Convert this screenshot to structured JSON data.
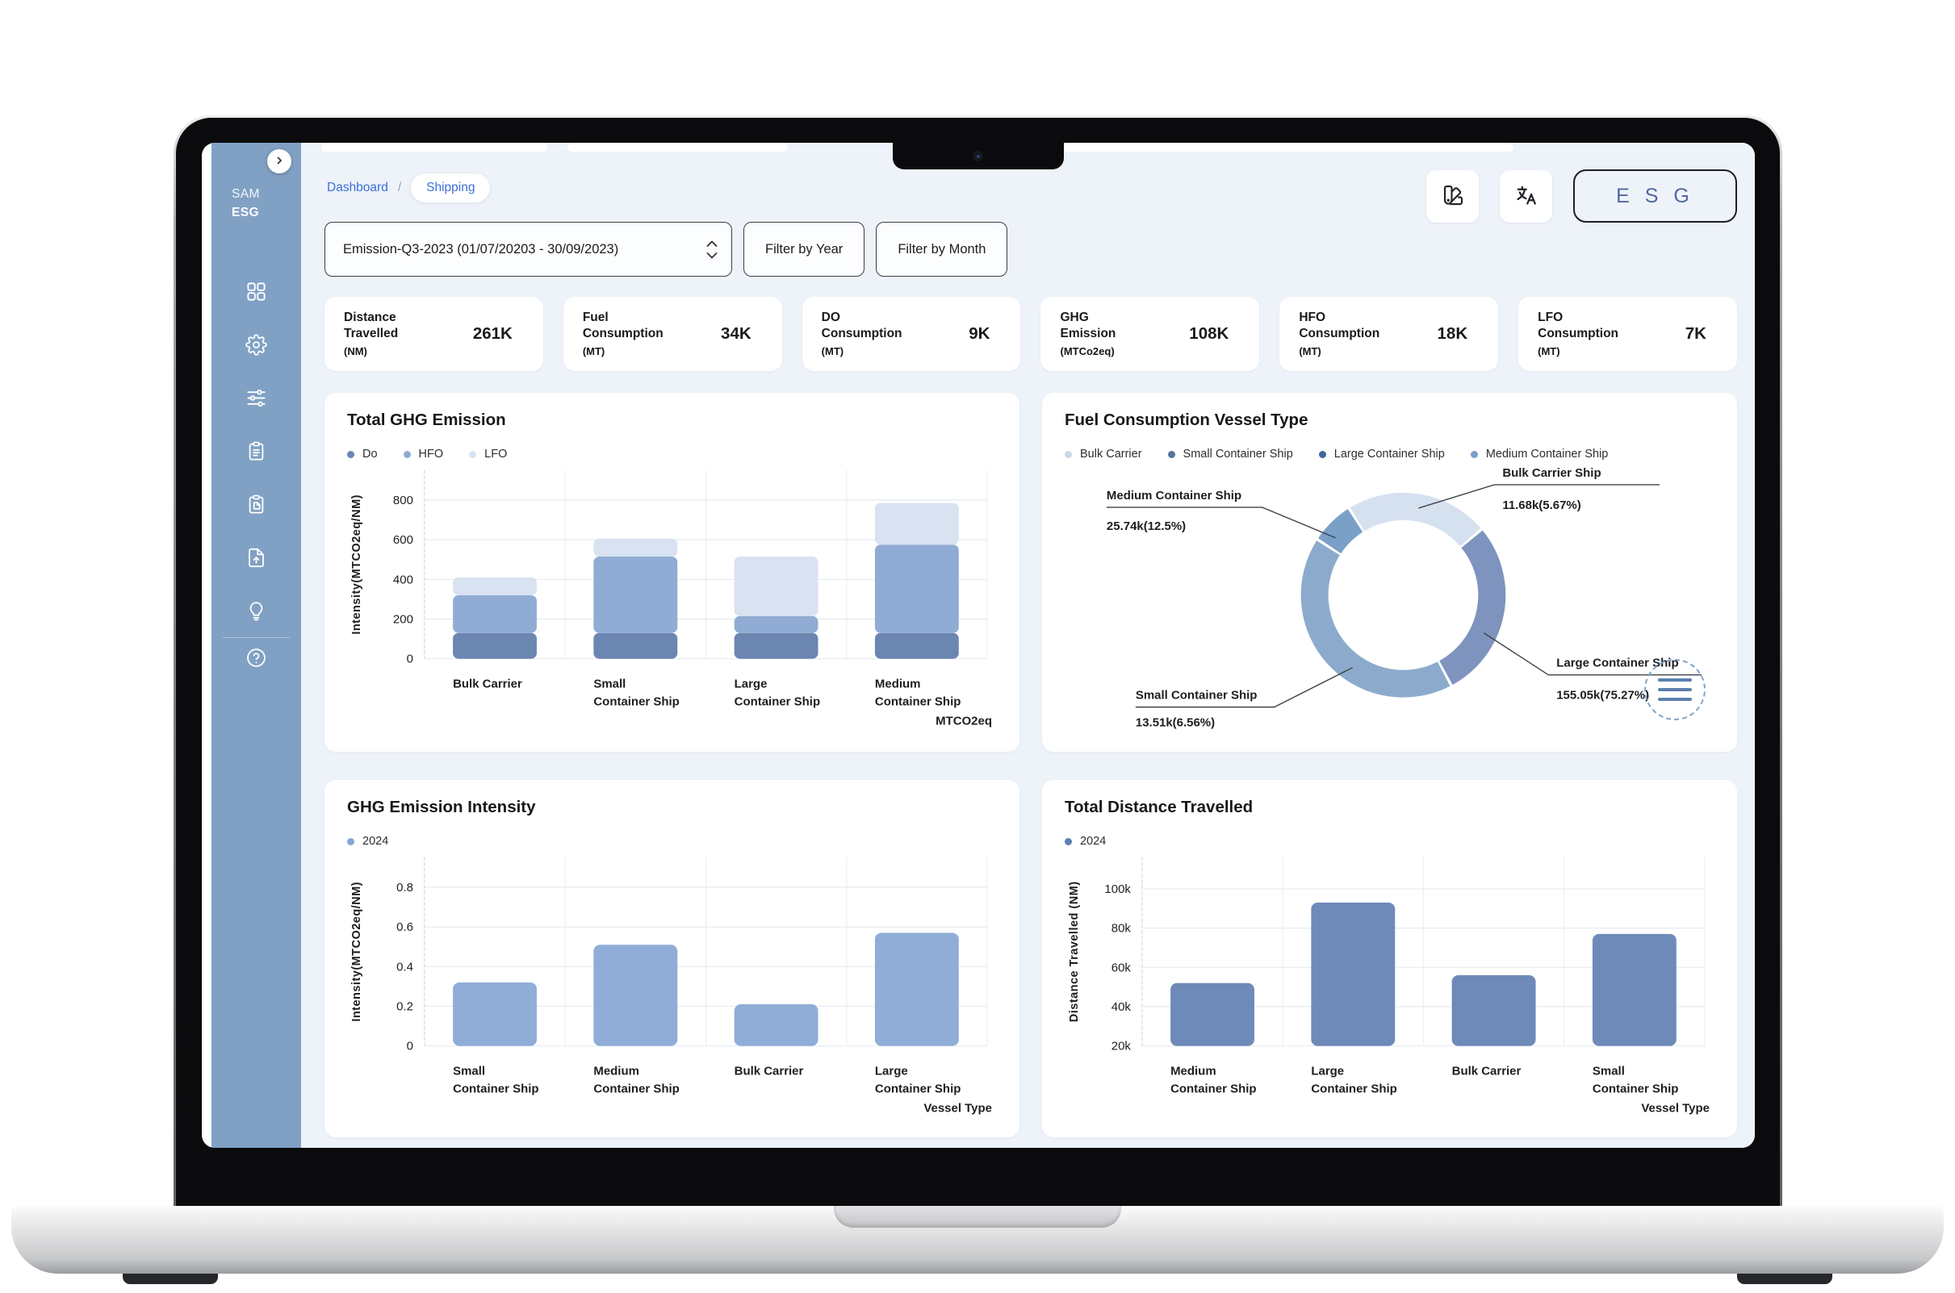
{
  "sidebar": {
    "brand_line1": "SAM",
    "brand_line2": "ESG",
    "collapse_icon": "chevron-right",
    "icons": [
      "dashboard-grid",
      "settings-gear",
      "filter-sliders",
      "report-clipboard",
      "copy-clipboard",
      "file-upload",
      "idea-bulb",
      "help-circle"
    ]
  },
  "header": {
    "breadcrumb": {
      "home": "Dashboard",
      "separator": "/",
      "current": "Shipping"
    },
    "actions": {
      "theme_icon": "swatchbook-icon",
      "translate_icon": "translate-icon",
      "esg_button": "E S G"
    }
  },
  "filters": {
    "period": "Emission-Q3-2023 (01/07/20203 - 30/09/2023)",
    "filter_year": "Filter by Year",
    "filter_month": "Filter by Month"
  },
  "kpis": [
    {
      "label": "Distance Travelled",
      "unit": "(NM)",
      "value": "261K"
    },
    {
      "label": "Fuel Consumption",
      "unit": "(MT)",
      "value": "34K"
    },
    {
      "label": "DO Consumption",
      "unit": "(MT)",
      "value": "9K"
    },
    {
      "label": "GHG Emission",
      "unit": "(MTCo2eq)",
      "value": "108K"
    },
    {
      "label": "HFO Consumption",
      "unit": "(MT)",
      "value": "18K"
    },
    {
      "label": "LFO Consumption",
      "unit": "(MT)",
      "value": "7K"
    }
  ],
  "chart_data": [
    {
      "id": "ghg-emission",
      "type": "bar",
      "stacked": true,
      "title": "Total GHG Emission",
      "ylabel": "Intensity(MTCO2eq/NM)",
      "xlabel": "MTCO2eq",
      "categories": [
        [
          "Bulk Carrier"
        ],
        [
          "Small",
          "Container Ship"
        ],
        [
          "Large",
          "Container Ship"
        ],
        [
          "Medium",
          "Container Ship"
        ]
      ],
      "yticks": [
        0,
        200,
        400,
        600,
        800
      ],
      "ytick_labels": [
        "0",
        "200",
        "400",
        "600",
        "800"
      ],
      "ymin": 0,
      "ymax": 950,
      "grid": true,
      "legend": [
        {
          "name": "Do",
          "color": "#6b86b1"
        },
        {
          "name": "HFO",
          "color": "#90acd4"
        },
        {
          "name": "LFO",
          "color": "#d8e2f1"
        }
      ],
      "series": [
        {
          "name": "Do",
          "color": "#6b86b1",
          "values": [
            130,
            130,
            130,
            130
          ]
        },
        {
          "name": "HFO",
          "color": "#90acd4",
          "values": [
            190,
            385,
            85,
            445
          ]
        },
        {
          "name": "LFO",
          "color": "#d8e2f1",
          "values": [
            90,
            90,
            300,
            210
          ]
        }
      ]
    },
    {
      "id": "fuel-vessel",
      "type": "pie",
      "title": "Fuel Consumption Vessel Type",
      "menu_icon": "hamburger-menu-icon",
      "legend": [
        {
          "name": "Bulk Carrier",
          "color": "#ccd9eb"
        },
        {
          "name": "Small Container Ship",
          "color": "#54749f"
        },
        {
          "name": "Large Container Ship",
          "color": "#44659a"
        },
        {
          "name": "Medium Container Ship",
          "color": "#7b9dc9"
        }
      ],
      "slices": [
        {
          "label": "Bulk Carrier Ship",
          "value": 11680,
          "pct": 5.67,
          "value_label": "11.68k(5.67%)",
          "color": "#d6e1f0",
          "arc": [
            -32,
            50
          ]
        },
        {
          "label": "Large Container Ship",
          "value": 155050,
          "pct": 75.27,
          "value_label": "155.05k(75.27%)",
          "color": "#7e93bd",
          "arc": [
            50,
            152
          ]
        },
        {
          "label": "Small Container Ship",
          "value": 13510,
          "pct": 6.56,
          "value_label": "13.51k(6.56%)",
          "color": "#8cabcc",
          "arc": [
            152,
            303
          ]
        },
        {
          "label": "Medium Container Ship",
          "value": 25740,
          "pct": 12.5,
          "value_label": "25.74k(12.5%)",
          "color": "#7aa0c7",
          "arc": [
            303,
            328
          ]
        }
      ]
    },
    {
      "id": "ghg-intensity",
      "type": "bar",
      "stacked": false,
      "title": "GHG Emission Intensity",
      "ylabel": "Intensity(MTCO2eq/NM)",
      "xlabel": "Vessel Type",
      "categories": [
        [
          "Small",
          "Container Ship"
        ],
        [
          "Medium",
          "Container Ship"
        ],
        [
          "Bulk Carrier"
        ],
        [
          "Large",
          "Container Ship"
        ]
      ],
      "yticks": [
        0,
        0.2,
        0.4,
        0.6,
        0.8
      ],
      "ytick_labels": [
        "0",
        "0.2",
        "0.4",
        "0.6",
        "0.8"
      ],
      "ymin": 0,
      "ymax": 0.95,
      "grid": true,
      "color": "#8fadd6",
      "legend": [
        {
          "name": "2024",
          "color": "#86a5d2"
        }
      ],
      "values": [
        0.32,
        0.51,
        0.21,
        0.57
      ]
    },
    {
      "id": "distance",
      "type": "bar",
      "stacked": false,
      "title": "Total Distance Travelled",
      "ylabel": "Distance Travelled (NM)",
      "xlabel": "Vessel Type",
      "categories": [
        [
          "Medium",
          "Container Ship"
        ],
        [
          "Large",
          "Container Ship"
        ],
        [
          "Bulk Carrier"
        ],
        [
          "Small",
          "Container Ship"
        ]
      ],
      "yticks": [
        20000,
        40000,
        60000,
        80000,
        100000
      ],
      "ytick_labels": [
        "20k",
        "40k",
        "60k",
        "80k",
        "100k"
      ],
      "ymin": 20000,
      "ymax": 116000,
      "grid": true,
      "color": "#6e8ab9",
      "legend": [
        {
          "name": "2024",
          "color": "#5f80b2"
        }
      ],
      "values": [
        52000,
        93000,
        56000,
        77000
      ]
    }
  ]
}
